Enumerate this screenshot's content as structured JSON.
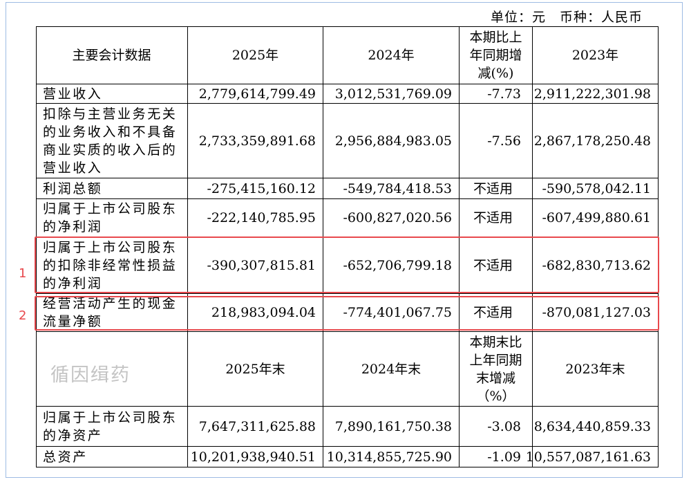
{
  "note": "单位：元　币种：人民币",
  "table": {
    "rows": [
      [
        "主要会计数据",
        "2025年",
        "2024年",
        "本期比上年同期增减(%)",
        "2023年"
      ],
      [
        "营业收入",
        "2,779,614,799.49",
        "3,012,531,769.09",
        "-7.73",
        "2,911,222,301.98"
      ],
      [
        "扣除与主营业务无关的业务收入和不具备商业实质的收入后的营业收入",
        "2,733,359,891.68",
        "2,956,884,983.05",
        "-7.56",
        "2,867,178,250.48"
      ],
      [
        "利润总额",
        "-275,415,160.12",
        "-549,784,418.53",
        "不适用",
        "-590,578,042.11"
      ],
      [
        "归属于上市公司股东的净利润",
        "-222,140,785.95",
        "-600,827,020.56",
        "不适用",
        "-607,499,880.61"
      ],
      [
        "归属于上市公司股东的扣除非经常性损益的净利润",
        "-390,307,815.81",
        "-652,706,799.18",
        "不适用",
        "-682,830,713.62"
      ],
      [
        "经营活动产生的现金流量净额",
        "218,983,094.04",
        "-774,401,067.75",
        "不适用",
        "-870,081,127.03"
      ],
      [
        null,
        "2025年末",
        "2024年末",
        "本期末比上年同期末增减（%）",
        "2023年末"
      ],
      [
        "归属于上市公司股东的净资产",
        "7,647,311,625.88",
        "7,890,161,750.38",
        "-3.08",
        "8,634,440,859.33"
      ],
      [
        "总资产",
        "10,201,938,940.51",
        "10,314,855,725.90",
        "-1.09",
        "10,557,087,161.63"
      ]
    ]
  },
  "highlights": [
    "1",
    "2"
  ],
  "watermark": "循因缉药"
}
